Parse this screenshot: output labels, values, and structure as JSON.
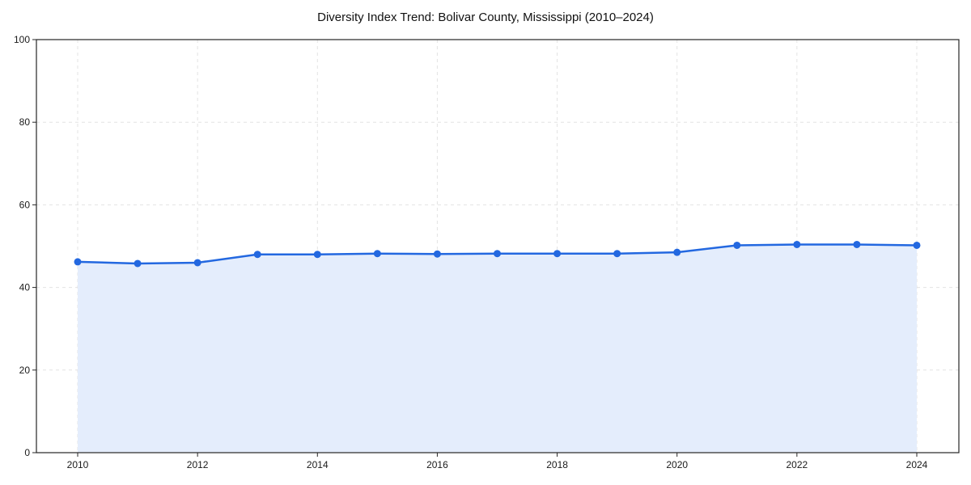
{
  "chart_data": {
    "type": "line",
    "title": "Diversity Index Trend: Bolivar County, Mississippi (2010–2024)",
    "x": [
      2010,
      2011,
      2012,
      2013,
      2014,
      2015,
      2016,
      2017,
      2018,
      2019,
      2020,
      2021,
      2022,
      2023,
      2024
    ],
    "series": [
      {
        "name": "Diversity Index",
        "values": [
          46.2,
          45.8,
          46.0,
          48.0,
          48.0,
          48.2,
          48.1,
          48.2,
          48.2,
          48.2,
          48.5,
          50.2,
          50.4,
          50.4,
          50.2
        ]
      }
    ],
    "xlabel": "",
    "ylabel": "",
    "ylim": [
      0,
      100
    ],
    "y_ticks": [
      0,
      20,
      40,
      60,
      80,
      100
    ],
    "x_ticks": [
      2010,
      2012,
      2014,
      2016,
      2018,
      2020,
      2022,
      2024
    ],
    "grid": true,
    "grid_style": "dashed",
    "legend_position": "none",
    "marker": "circle",
    "area_fill_enabled": true,
    "colors": {
      "line": "#2368e0",
      "marker": "#2368e0",
      "area_fill": "#e4edfc",
      "gridline": "#e3e3e3",
      "spine": "#262626",
      "tick_text": "#1a1a1a",
      "background": "#ffffff"
    }
  }
}
